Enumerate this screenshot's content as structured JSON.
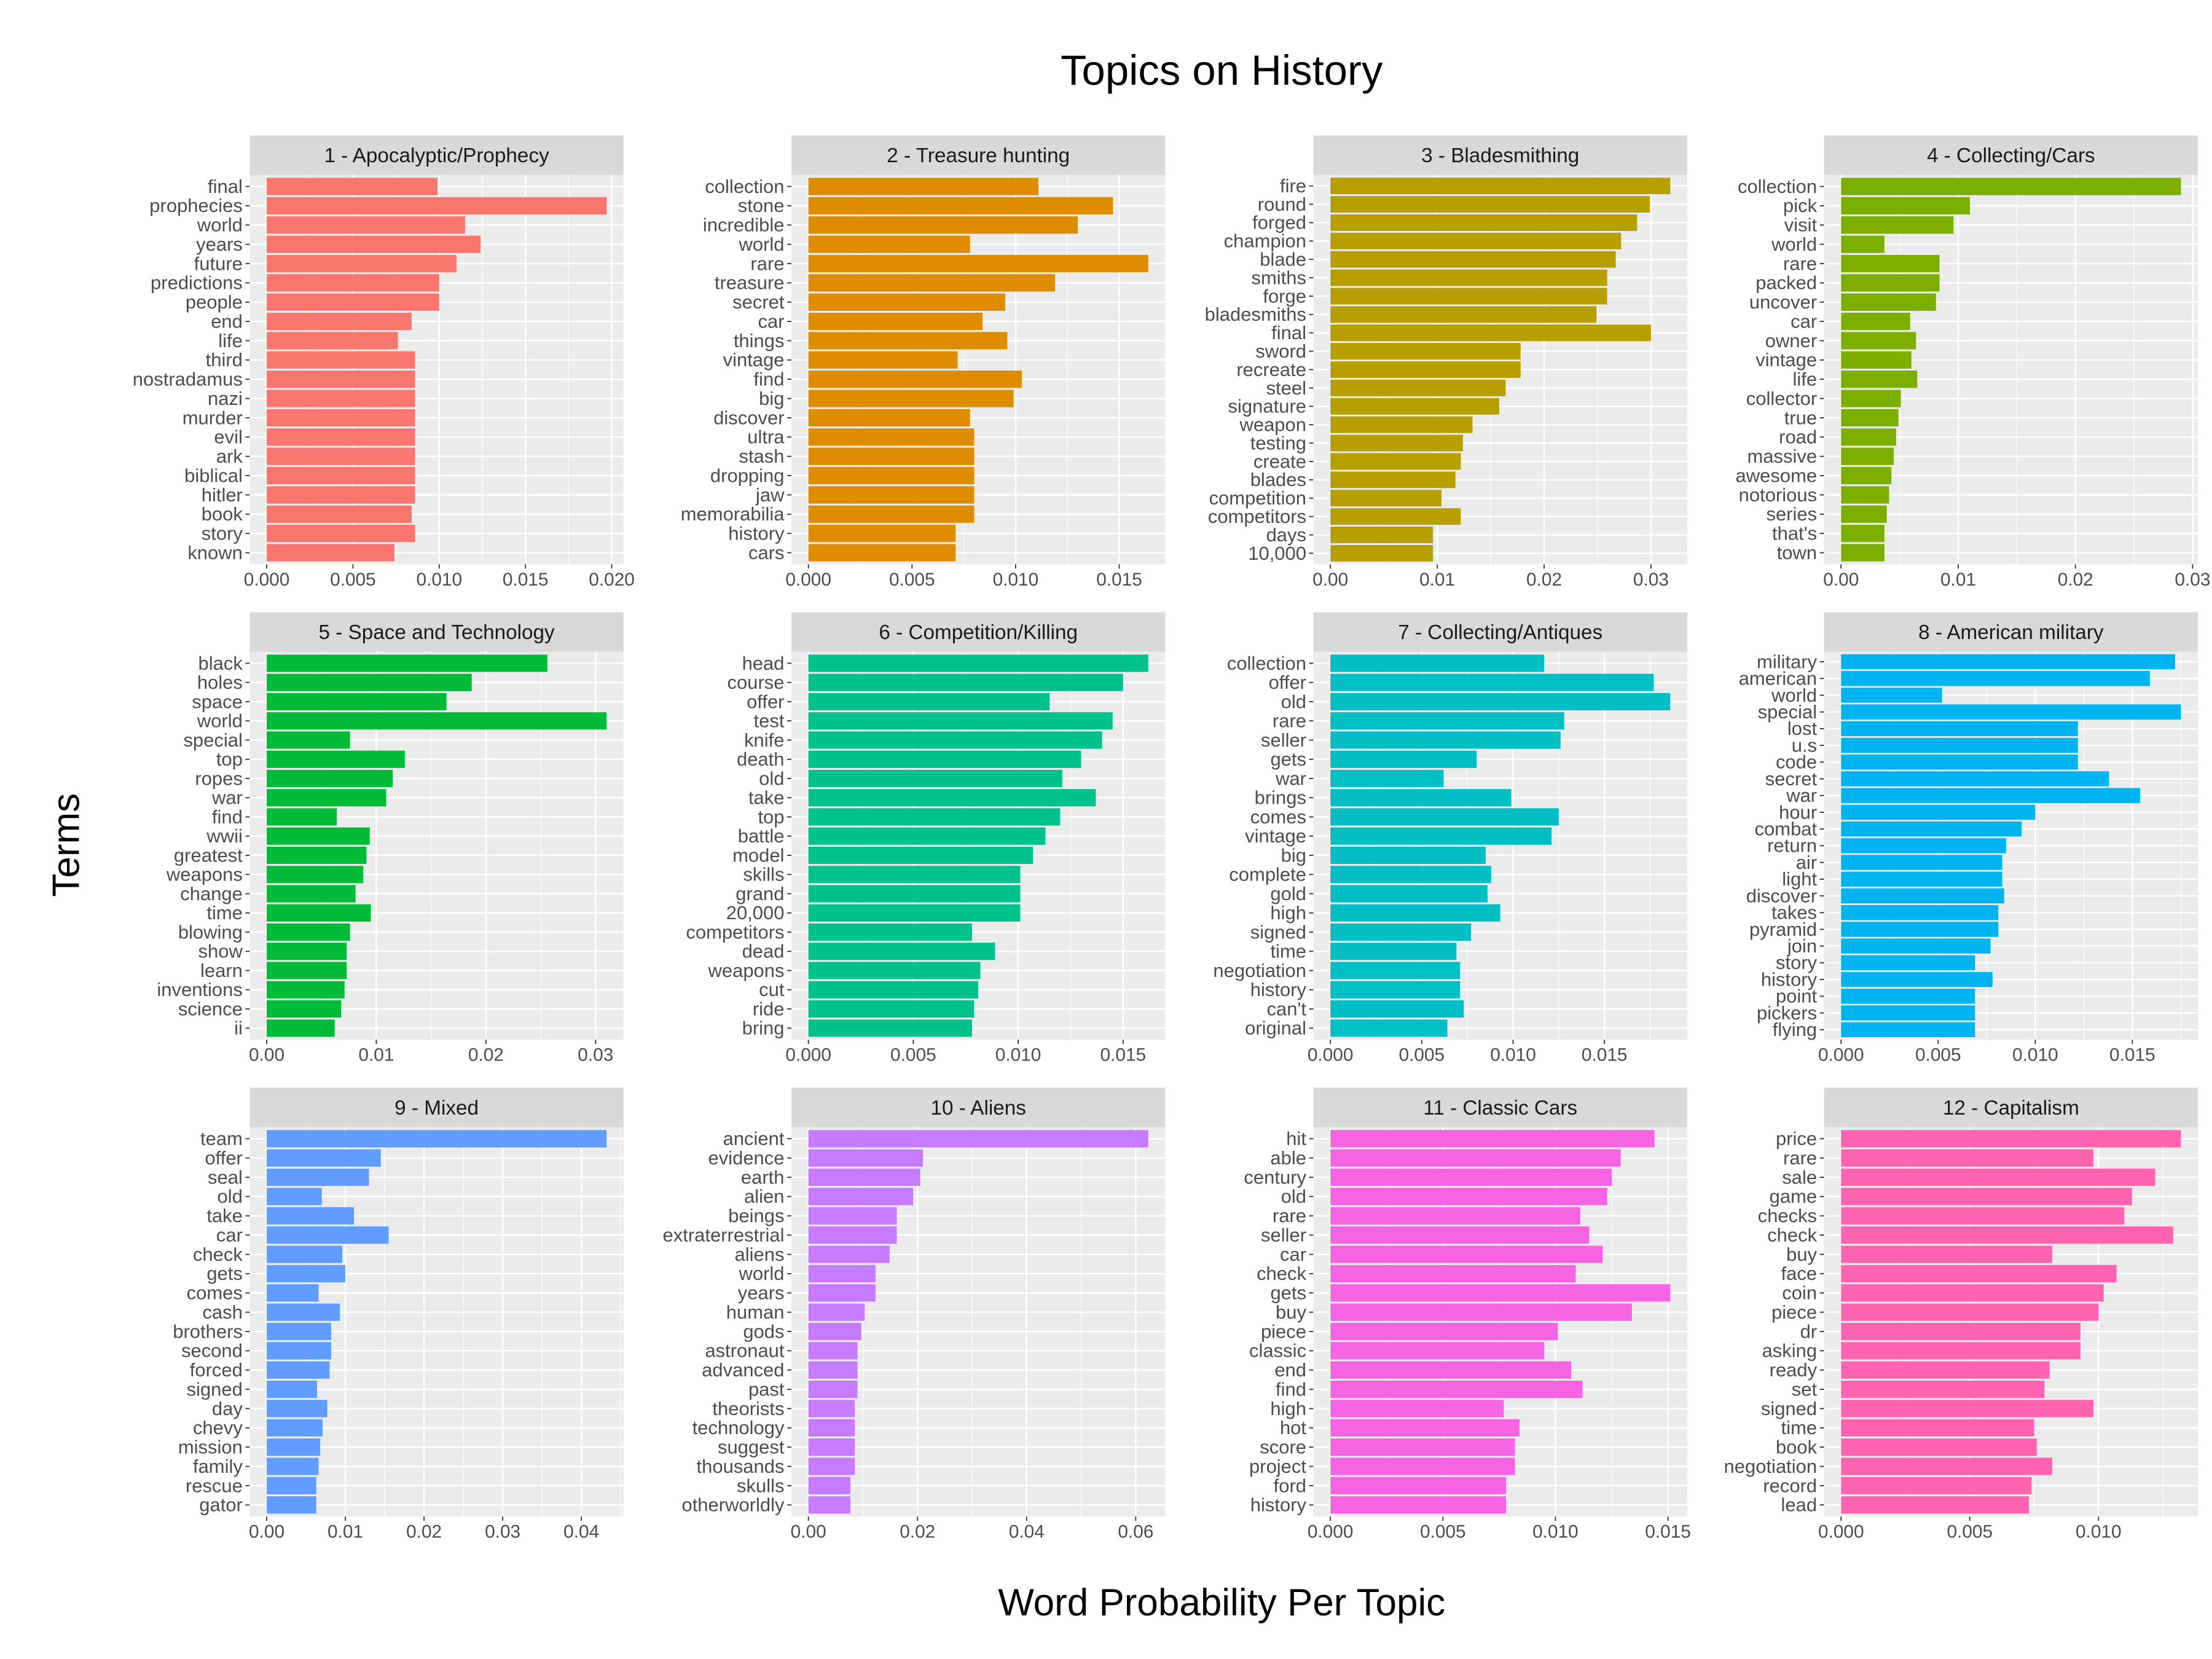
{
  "title": "Topics on History",
  "xlabel": "Word Probability Per Topic",
  "ylabel": "Terms",
  "chart_data": [
    {
      "type": "bar",
      "orientation": "horizontal",
      "title": "1 - Apocalyptic/Prophecy",
      "color": "#F8766D",
      "terms": [
        "final",
        "prophecies",
        "world",
        "years",
        "future",
        "predictions",
        "people",
        "end",
        "life",
        "third",
        "nostradamus",
        "nazi",
        "murder",
        "evil",
        "ark",
        "biblical",
        "hitler",
        "book",
        "story",
        "known"
      ],
      "values": [
        0.0099,
        0.0197,
        0.0115,
        0.0124,
        0.011,
        0.01,
        0.01,
        0.0084,
        0.0076,
        0.0086,
        0.0086,
        0.0086,
        0.0086,
        0.0086,
        0.0086,
        0.0086,
        0.0086,
        0.0084,
        0.0086,
        0.0074
      ],
      "xticks": [
        0,
        0.005,
        0.01,
        0.015,
        0.02
      ],
      "xtick_labels": [
        "0.000",
        "0.005",
        "0.010",
        "0.015",
        "0.020"
      ]
    },
    {
      "type": "bar",
      "orientation": "horizontal",
      "title": "2 - Treasure hunting",
      "color": "#DE8C00",
      "terms": [
        "collection",
        "stone",
        "incredible",
        "world",
        "rare",
        "treasure",
        "secret",
        "car",
        "things",
        "vintage",
        "find",
        "big",
        "discover",
        "ultra",
        "stash",
        "dropping",
        "jaw",
        "memorabilia",
        "history",
        "cars"
      ],
      "values": [
        0.0111,
        0.0147,
        0.013,
        0.0078,
        0.0164,
        0.0119,
        0.0095,
        0.0084,
        0.0096,
        0.0072,
        0.0103,
        0.0099,
        0.0078,
        0.008,
        0.008,
        0.008,
        0.008,
        0.008,
        0.0071,
        0.0071
      ],
      "xticks": [
        0,
        0.005,
        0.01,
        0.015
      ],
      "xtick_labels": [
        "0.000",
        "0.005",
        "0.010",
        "0.015"
      ]
    },
    {
      "type": "bar",
      "orientation": "horizontal",
      "title": "3 - Bladesmithing",
      "color": "#B79F00",
      "terms": [
        "fire",
        "round",
        "forged",
        "champion",
        "blade",
        "smiths",
        "forge",
        "bladesmiths",
        "final",
        "sword",
        "recreate",
        "steel",
        "signature",
        "weapon",
        "testing",
        "create",
        "blades",
        "competition",
        "competitors",
        "days",
        "10,000"
      ],
      "values": [
        0.0318,
        0.0299,
        0.0287,
        0.0272,
        0.0267,
        0.0259,
        0.0259,
        0.0249,
        0.03,
        0.0178,
        0.0178,
        0.0164,
        0.0158,
        0.0133,
        0.0124,
        0.0122,
        0.0117,
        0.0104,
        0.0122,
        0.0096,
        0.0096
      ],
      "xticks": [
        0,
        0.01,
        0.02,
        0.03
      ],
      "xtick_labels": [
        "0.00",
        "0.01",
        "0.02",
        "0.03"
      ]
    },
    {
      "type": "bar",
      "orientation": "horizontal",
      "title": "4 - Collecting/Cars",
      "color": "#7CAE00",
      "terms": [
        "collection",
        "pick",
        "visit",
        "world",
        "rare",
        "packed",
        "uncover",
        "car",
        "owner",
        "vintage",
        "life",
        "collector",
        "true",
        "road",
        "massive",
        "awesome",
        "notorious",
        "series",
        "that's",
        "town"
      ],
      "values": [
        0.029,
        0.011,
        0.0096,
        0.0037,
        0.0084,
        0.0084,
        0.0081,
        0.0059,
        0.0064,
        0.006,
        0.0065,
        0.0051,
        0.0049,
        0.0047,
        0.0045,
        0.0043,
        0.0041,
        0.0039,
        0.0037,
        0.0037
      ],
      "xticks": [
        0,
        0.01,
        0.02,
        0.03
      ],
      "xtick_labels": [
        "0.00",
        "0.01",
        "0.02",
        "0.03"
      ]
    },
    {
      "type": "bar",
      "orientation": "horizontal",
      "title": "5 - Space and Technology",
      "color": "#00BA38",
      "terms": [
        "black",
        "holes",
        "space",
        "world",
        "special",
        "top",
        "ropes",
        "war",
        "find",
        "wwii",
        "greatest",
        "weapons",
        "change",
        "time",
        "blowing",
        "show",
        "learn",
        "inventions",
        "science",
        "ii"
      ],
      "values": [
        0.0256,
        0.0187,
        0.0164,
        0.031,
        0.0076,
        0.0126,
        0.0115,
        0.0109,
        0.0064,
        0.0094,
        0.0091,
        0.0088,
        0.0081,
        0.0095,
        0.0076,
        0.0073,
        0.0073,
        0.0071,
        0.0068,
        0.0062
      ],
      "xticks": [
        0,
        0.01,
        0.02,
        0.03
      ],
      "xtick_labels": [
        "0.00",
        "0.01",
        "0.02",
        "0.03"
      ]
    },
    {
      "type": "bar",
      "orientation": "horizontal",
      "title": "6 - Competition/Killing",
      "color": "#00C08B",
      "terms": [
        "head",
        "course",
        "offer",
        "test",
        "knife",
        "death",
        "old",
        "take",
        "top",
        "battle",
        "model",
        "skills",
        "grand",
        "20,000",
        "competitors",
        "dead",
        "weapons",
        "cut",
        "ride",
        "bring"
      ],
      "values": [
        0.0162,
        0.015,
        0.0115,
        0.0145,
        0.014,
        0.013,
        0.0121,
        0.0137,
        0.012,
        0.0113,
        0.0107,
        0.0101,
        0.0101,
        0.0101,
        0.0078,
        0.0089,
        0.0082,
        0.0081,
        0.0079,
        0.0078
      ],
      "xticks": [
        0,
        0.005,
        0.01,
        0.015
      ],
      "xtick_labels": [
        "0.000",
        "0.005",
        "0.010",
        "0.015"
      ]
    },
    {
      "type": "bar",
      "orientation": "horizontal",
      "title": "7 - Collecting/Antiques",
      "color": "#00BFC4",
      "terms": [
        "collection",
        "offer",
        "old",
        "rare",
        "seller",
        "gets",
        "war",
        "brings",
        "comes",
        "vintage",
        "big",
        "complete",
        "gold",
        "high",
        "signed",
        "time",
        "negotiation",
        "history",
        "can't",
        "original"
      ],
      "values": [
        0.0117,
        0.0177,
        0.0186,
        0.0128,
        0.0126,
        0.008,
        0.0062,
        0.0099,
        0.0125,
        0.0121,
        0.0085,
        0.0088,
        0.0086,
        0.0093,
        0.0077,
        0.0069,
        0.0071,
        0.0071,
        0.0073,
        0.0064
      ],
      "xticks": [
        0,
        0.005,
        0.01,
        0.015
      ],
      "xtick_labels": [
        "0.000",
        "0.005",
        "0.010",
        "0.015"
      ]
    },
    {
      "type": "bar",
      "orientation": "horizontal",
      "title": "8 - American military",
      "color": "#00B4F0",
      "terms": [
        "military",
        "american",
        "world",
        "special",
        "lost",
        "u.s",
        "code",
        "secret",
        "war",
        "hour",
        "combat",
        "return",
        "air",
        "light",
        "discover",
        "takes",
        "pyramid",
        "join",
        "story",
        "history",
        "point",
        "pickers",
        "flying"
      ],
      "values": [
        0.0172,
        0.0159,
        0.0052,
        0.0175,
        0.0122,
        0.0122,
        0.0122,
        0.0138,
        0.0154,
        0.01,
        0.0093,
        0.0085,
        0.0083,
        0.0083,
        0.0084,
        0.0081,
        0.0081,
        0.0077,
        0.0069,
        0.0078,
        0.0069,
        0.0069,
        0.0069
      ],
      "xticks": [
        0,
        0.005,
        0.01,
        0.015
      ],
      "xtick_labels": [
        "0.000",
        "0.005",
        "0.010",
        "0.015"
      ]
    },
    {
      "type": "bar",
      "orientation": "horizontal",
      "title": "9 - Mixed",
      "color": "#619CFF",
      "terms": [
        "team",
        "offer",
        "seal",
        "old",
        "take",
        "car",
        "check",
        "gets",
        "comes",
        "cash",
        "brothers",
        "second",
        "forced",
        "signed",
        "day",
        "chevy",
        "mission",
        "family",
        "rescue",
        "gator"
      ],
      "values": [
        0.0432,
        0.0145,
        0.013,
        0.007,
        0.0111,
        0.0155,
        0.0096,
        0.01,
        0.0066,
        0.0093,
        0.0082,
        0.0082,
        0.008,
        0.0064,
        0.0077,
        0.0071,
        0.0068,
        0.0066,
        0.0063,
        0.0063
      ],
      "xticks": [
        0,
        0.01,
        0.02,
        0.03,
        0.04
      ],
      "xtick_labels": [
        "0.00",
        "0.01",
        "0.02",
        "0.03",
        "0.04"
      ]
    },
    {
      "type": "bar",
      "orientation": "horizontal",
      "title": "10 - Aliens",
      "color": "#C77CFF",
      "terms": [
        "ancient",
        "evidence",
        "earth",
        "alien",
        "beings",
        "extraterrestrial",
        "aliens",
        "world",
        "years",
        "human",
        "gods",
        "astronaut",
        "advanced",
        "past",
        "theorists",
        "technology",
        "suggest",
        "thousands",
        "skulls",
        "otherworldly"
      ],
      "values": [
        0.0623,
        0.021,
        0.0205,
        0.0192,
        0.0162,
        0.0162,
        0.0149,
        0.0123,
        0.0123,
        0.0103,
        0.0097,
        0.009,
        0.009,
        0.009,
        0.0085,
        0.0085,
        0.0085,
        0.0085,
        0.0077,
        0.0077
      ],
      "xticks": [
        0,
        0.02,
        0.04,
        0.06
      ],
      "xtick_labels": [
        "0.00",
        "0.02",
        "0.04",
        "0.06"
      ]
    },
    {
      "type": "bar",
      "orientation": "horizontal",
      "title": "11 - Classic Cars",
      "color": "#F564E3",
      "terms": [
        "hit",
        "able",
        "century",
        "old",
        "rare",
        "seller",
        "car",
        "check",
        "gets",
        "buy",
        "piece",
        "classic",
        "end",
        "find",
        "high",
        "hot",
        "score",
        "project",
        "ford",
        "history"
      ],
      "values": [
        0.0144,
        0.0129,
        0.0125,
        0.0123,
        0.0111,
        0.0115,
        0.0121,
        0.0109,
        0.0151,
        0.0134,
        0.0101,
        0.0095,
        0.0107,
        0.0112,
        0.0077,
        0.0084,
        0.0082,
        0.0082,
        0.0078,
        0.0078
      ],
      "xticks": [
        0,
        0.005,
        0.01,
        0.015
      ],
      "xtick_labels": [
        "0.000",
        "0.005",
        "0.010",
        "0.015"
      ]
    },
    {
      "type": "bar",
      "orientation": "horizontal",
      "title": "12 - Capitalism",
      "color": "#FF64B0",
      "terms": [
        "price",
        "rare",
        "sale",
        "game",
        "checks",
        "check",
        "buy",
        "face",
        "coin",
        "piece",
        "dr",
        "asking",
        "ready",
        "set",
        "signed",
        "time",
        "book",
        "negotiation",
        "record",
        "lead"
      ],
      "values": [
        0.0132,
        0.0098,
        0.0122,
        0.0113,
        0.011,
        0.0129,
        0.0082,
        0.0107,
        0.0102,
        0.01,
        0.0093,
        0.0093,
        0.0081,
        0.0079,
        0.0098,
        0.0075,
        0.0076,
        0.0082,
        0.0074,
        0.0073
      ],
      "xticks": [
        0,
        0.005,
        0.01
      ],
      "xtick_labels": [
        "0.000",
        "0.005",
        "0.010"
      ]
    }
  ]
}
